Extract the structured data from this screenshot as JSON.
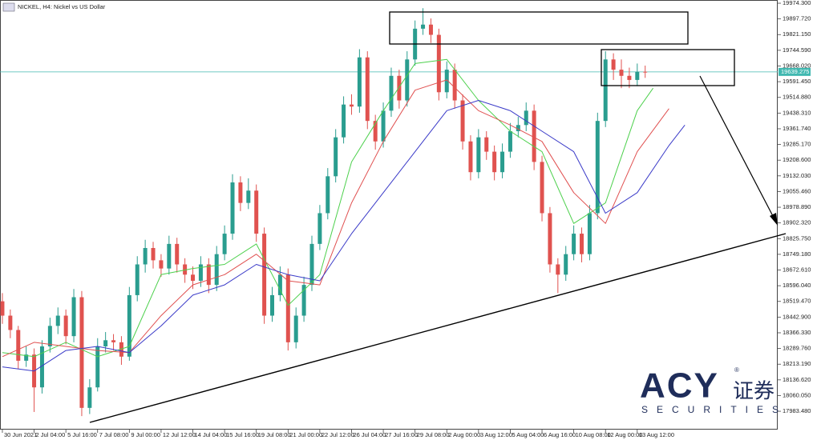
{
  "chart_data": {
    "type": "candlestick",
    "title": "NICKEL, H4: Nickel vs US Dollar",
    "x": [
      0,
      1,
      2,
      3,
      4,
      5,
      6,
      7,
      8,
      9,
      10,
      11,
      12,
      13,
      14,
      15,
      16,
      17,
      18,
      19,
      20,
      21,
      22,
      23,
      24,
      25,
      26,
      27,
      28,
      29,
      30,
      31,
      32,
      33,
      34,
      35,
      36,
      37,
      38,
      39,
      40,
      41,
      42,
      43,
      44,
      45,
      46,
      47,
      48,
      49,
      50,
      51,
      52,
      53,
      54,
      55,
      56,
      57,
      58,
      59,
      60,
      61,
      62,
      63,
      64,
      65,
      66,
      67,
      68,
      69,
      70,
      71,
      72,
      73,
      74,
      75,
      76,
      77,
      78,
      79,
      80,
      81
    ],
    "open": [
      18520,
      18450,
      18380,
      18230,
      18260,
      18100,
      18300,
      18400,
      18450,
      18350,
      18540,
      18000,
      18100,
      18300,
      18330,
      18320,
      18250,
      18550,
      18700,
      18780,
      18720,
      18680,
      18800,
      18700,
      18650,
      18620,
      18700,
      18600,
      18750,
      18850,
      19100,
      19000,
      19060,
      18850,
      18450,
      18550,
      18650,
      18320,
      18450,
      18600,
      18800,
      18950,
      19130,
      19320,
      19480,
      19470,
      19710,
      19400,
      19300,
      19450,
      19620,
      19500,
      19700,
      19850,
      19870,
      19820,
      19540,
      19650,
      19500,
      19300,
      19150,
      19320,
      19250,
      19150,
      19250,
      19350,
      19380,
      19450,
      19200,
      18950,
      18700,
      18650,
      18750,
      18850,
      18750,
      18950,
      19400,
      19700,
      19650,
      19620,
      19600,
      19640
    ],
    "high": [
      18560,
      18480,
      18400,
      18300,
      18290,
      18330,
      18440,
      18490,
      18480,
      18580,
      18570,
      18140,
      18340,
      18370,
      18360,
      18350,
      18590,
      18740,
      18820,
      18810,
      18750,
      18840,
      18830,
      18730,
      18690,
      18740,
      18730,
      18790,
      18890,
      19140,
      19130,
      19120,
      19090,
      18880,
      18590,
      18690,
      18680,
      18490,
      18640,
      18840,
      18990,
      19170,
      19360,
      19520,
      19530,
      19750,
      19740,
      19430,
      19490,
      19660,
      19650,
      19740,
      19890,
      19950,
      19900,
      19850,
      19690,
      19680,
      19530,
      19330,
      19360,
      19350,
      19280,
      19290,
      19390,
      19420,
      19490,
      19480,
      19230,
      18980,
      18730,
      18790,
      18890,
      18880,
      18990,
      19440,
      19740,
      19730,
      19700,
      19660,
      19680,
      19670
    ],
    "low": [
      18410,
      18340,
      18190,
      18200,
      17980,
      18070,
      18270,
      18360,
      18310,
      18320,
      17960,
      17970,
      18080,
      18270,
      18280,
      18210,
      18230,
      18520,
      18660,
      18680,
      18640,
      18650,
      18660,
      18610,
      18580,
      18590,
      18560,
      18570,
      18720,
      18820,
      18960,
      18970,
      18810,
      18410,
      18420,
      18520,
      18280,
      18290,
      18420,
      18570,
      18770,
      18920,
      19100,
      19290,
      19430,
      19440,
      19360,
      19260,
      19270,
      19420,
      19460,
      19470,
      19670,
      19820,
      19780,
      19500,
      19510,
      19460,
      19260,
      19110,
      19120,
      19210,
      19110,
      19120,
      19220,
      19320,
      19350,
      19160,
      18910,
      18660,
      18560,
      18620,
      18720,
      18710,
      18720,
      18920,
      19370,
      19600,
      19560,
      19560,
      19570,
      19610
    ],
    "close": [
      18450,
      18380,
      18230,
      18260,
      18100,
      18300,
      18400,
      18450,
      18350,
      18540,
      18000,
      18100,
      18300,
      18330,
      18320,
      18250,
      18550,
      18700,
      18780,
      18720,
      18680,
      18800,
      18700,
      18650,
      18620,
      18700,
      18600,
      18750,
      18850,
      19100,
      19000,
      19060,
      18850,
      18450,
      18550,
      18650,
      18320,
      18450,
      18600,
      18800,
      18950,
      19130,
      19320,
      19480,
      19470,
      19710,
      19400,
      19300,
      19450,
      19620,
      19500,
      19700,
      19850,
      19870,
      19820,
      19540,
      19650,
      19500,
      19300,
      19150,
      19320,
      19250,
      19150,
      19250,
      19350,
      19380,
      19450,
      19200,
      18950,
      18700,
      18650,
      18750,
      18850,
      18750,
      18950,
      19400,
      19700,
      19650,
      19620,
      19600,
      19640,
      19639.275
    ],
    "up_color": "#2a9d8f",
    "down_color": "#e0524f",
    "series": [
      {
        "color": "#4cd04c",
        "x": [
          0,
          4,
          8,
          12,
          16,
          20,
          24,
          28,
          32,
          36,
          40,
          44,
          48,
          52,
          56,
          60,
          64,
          68,
          72,
          76,
          80,
          82
        ],
        "values": [
          18270,
          18250,
          18320,
          18250,
          18300,
          18650,
          18680,
          18700,
          18800,
          18500,
          18650,
          19200,
          19450,
          19680,
          19700,
          19500,
          19350,
          19250,
          18900,
          19000,
          19450,
          19560
        ]
      },
      {
        "color": "#e05050",
        "x": [
          0,
          4,
          8,
          12,
          16,
          20,
          24,
          28,
          32,
          36,
          40,
          44,
          48,
          52,
          56,
          60,
          64,
          68,
          72,
          76,
          80,
          84
        ],
        "values": [
          18250,
          18320,
          18300,
          18280,
          18270,
          18450,
          18600,
          18650,
          18750,
          18620,
          18600,
          19000,
          19300,
          19550,
          19600,
          19450,
          19380,
          19300,
          19050,
          18900,
          19250,
          19460
        ]
      },
      {
        "color": "#3a3ac8",
        "x": [
          0,
          4,
          8,
          12,
          16,
          20,
          24,
          28,
          32,
          36,
          40,
          44,
          48,
          52,
          56,
          60,
          64,
          68,
          72,
          76,
          80,
          84,
          86
        ],
        "values": [
          18200,
          18180,
          18280,
          18300,
          18270,
          18400,
          18550,
          18600,
          18700,
          18650,
          18620,
          18850,
          19050,
          19250,
          19450,
          19500,
          19450,
          19350,
          19250,
          18950,
          19050,
          19280,
          19380
        ]
      }
    ],
    "current_price": 19639.275,
    "current_price_color": "#40b8b0",
    "xlim": [
      -0.3,
      97.7
    ],
    "ylim": [
      17894,
      19990
    ],
    "xticks": [
      {
        "value": 0,
        "label": "30 Jun 2021"
      },
      {
        "value": 4,
        "label": "2 Jul 04:00"
      },
      {
        "value": 8,
        "label": "5 Jul 16:00"
      },
      {
        "value": 12,
        "label": "7 Jul 08:00"
      },
      {
        "value": 16,
        "label": "9 Jul 00:00"
      },
      {
        "value": 20,
        "label": "12 Jul 12:00"
      },
      {
        "value": 24,
        "label": "14 Jul 04:00"
      },
      {
        "value": 28,
        "label": "15 Jul 16:00"
      },
      {
        "value": 32,
        "label": "19 Jul 08:00"
      },
      {
        "value": 36,
        "label": "21 Jul 00:00"
      },
      {
        "value": 40,
        "label": "22 Jul 12:00"
      },
      {
        "value": 44,
        "label": "26 Jul 04:00"
      },
      {
        "value": 48,
        "label": "27 Jul 16:00"
      },
      {
        "value": 52,
        "label": "29 Jul 08:00"
      },
      {
        "value": 56,
        "label": "2 Aug 00:00"
      },
      {
        "value": 60,
        "label": "3 Aug 12:00"
      },
      {
        "value": 64,
        "label": "5 Aug 04:00"
      },
      {
        "value": 68,
        "label": "6 Aug 16:00"
      },
      {
        "value": 72,
        "label": "10 Aug 08:00"
      },
      {
        "value": 76,
        "label": "12 Aug 00:00"
      },
      {
        "value": 80,
        "label": "13 Aug 12:00"
      }
    ],
    "yticks": [
      {
        "value": 19974.3,
        "label": "19974.300"
      },
      {
        "value": 19897.72,
        "label": "19897.720"
      },
      {
        "value": 19821.15,
        "label": "19821.150"
      },
      {
        "value": 19744.59,
        "label": "19744.590"
      },
      {
        "value": 19668.02,
        "label": "19668.020"
      },
      {
        "value": 19591.45,
        "label": "19591.450"
      },
      {
        "value": 19514.88,
        "label": "19514.880"
      },
      {
        "value": 19438.31,
        "label": "19438.310"
      },
      {
        "value": 19361.74,
        "label": "19361.740"
      },
      {
        "value": 19285.17,
        "label": "19285.170"
      },
      {
        "value": 19208.6,
        "label": "19208.600"
      },
      {
        "value": 19132.03,
        "label": "19132.030"
      },
      {
        "value": 19055.46,
        "label": "19055.460"
      },
      {
        "value": 18978.89,
        "label": "18978.890"
      },
      {
        "value": 18902.32,
        "label": "18902.320"
      },
      {
        "value": 18825.75,
        "label": "18825.750"
      },
      {
        "value": 18749.18,
        "label": "18749.180"
      },
      {
        "value": 18672.61,
        "label": "18672.610"
      },
      {
        "value": 18596.04,
        "label": "18596.040"
      },
      {
        "value": 18519.47,
        "label": "18519.470"
      },
      {
        "value": 18442.9,
        "label": "18442.900"
      },
      {
        "value": 18366.33,
        "label": "18366.330"
      },
      {
        "value": 18289.76,
        "label": "18289.760"
      },
      {
        "value": 18213.19,
        "label": "18213.190"
      },
      {
        "value": 18136.62,
        "label": "18136.620"
      },
      {
        "value": 18060.05,
        "label": "18060.050"
      },
      {
        "value": 17983.48,
        "label": "17983.480"
      }
    ]
  },
  "logo": {
    "brand": "ACY",
    "chinese": "证券",
    "tagline": "SECURITIES",
    "mark": "®"
  }
}
